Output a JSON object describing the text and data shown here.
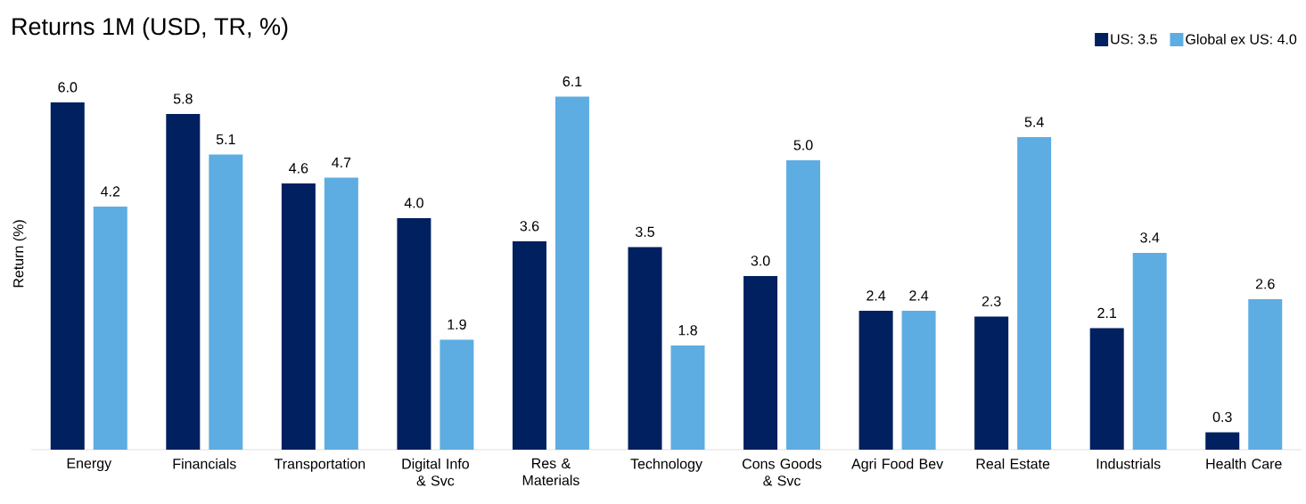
{
  "chart_data": {
    "type": "bar",
    "title": "Returns 1M (USD, TR, %)",
    "ylabel": "Return (%)",
    "categories": [
      "Energy",
      "Financials",
      "Transportation",
      "Digital Info & Svc",
      "Res & Materials",
      "Technology",
      "Cons Goods & Svc",
      "Agri Food Bev",
      "Real Estate",
      "Industrials",
      "Health Care"
    ],
    "series": [
      {
        "name": "US: 3.5",
        "color": "#002060",
        "values": [
          6.0,
          5.8,
          4.6,
          4.0,
          3.6,
          3.5,
          3.0,
          2.4,
          2.3,
          2.1,
          0.3
        ],
        "value_labels": [
          "6.0",
          "5.8",
          "4.6",
          "4.0",
          "3.6",
          "3.5",
          "3.0",
          "2.4",
          "2.3",
          "2.1",
          "0.3"
        ]
      },
      {
        "name": "Global ex US: 4.0",
        "color": "#5DADE2",
        "values": [
          4.2,
          5.1,
          4.7,
          1.9,
          6.1,
          1.8,
          5.0,
          2.4,
          5.4,
          3.4,
          2.6
        ],
        "value_labels": [
          "4.2",
          "5.1",
          "4.7",
          "1.9",
          "6.1",
          "1.8",
          "5.0",
          "2.4",
          "5.4",
          "3.4",
          "2.6"
        ]
      }
    ],
    "legend": "top right",
    "grid": false
  }
}
